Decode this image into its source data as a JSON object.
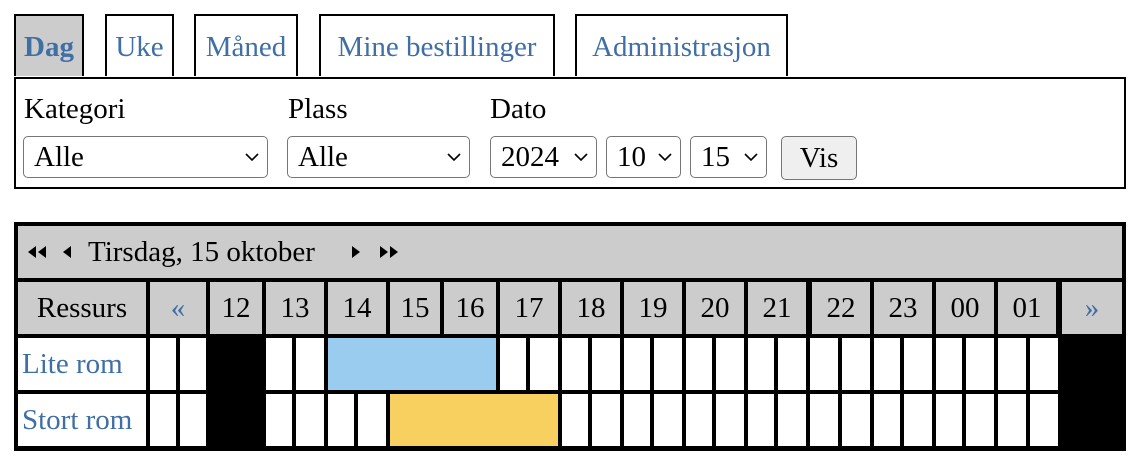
{
  "tabs": [
    {
      "label": "Dag",
      "active": true
    },
    {
      "label": "Uke"
    },
    {
      "label": "Måned"
    },
    {
      "label": "Mine bestillinger"
    },
    {
      "label": "Administrasjon"
    }
  ],
  "filters": {
    "kategori_label": "Kategori",
    "kategori_value": "Alle",
    "plass_label": "Plass",
    "plass_value": "Alle",
    "dato_label": "Dato",
    "year": "2024",
    "month": "10",
    "day": "15",
    "show_button": "Vis"
  },
  "calendar": {
    "date_title": "Tirsdag, 15 oktober",
    "resource_header": "Ressurs",
    "prev_label": "«",
    "next_label": "»",
    "hours": [
      "12",
      "13",
      "14",
      "15",
      "16",
      "17",
      "18",
      "19",
      "20",
      "21",
      "22",
      "23",
      "00",
      "01"
    ],
    "resources": [
      {
        "name": "Lite rom"
      },
      {
        "name": "Stort rom"
      }
    ],
    "colors": {
      "blocked": "#000000",
      "booking_lite": "#99ccee",
      "booking_stort": "#f8d060",
      "link": "#3f6fa5",
      "header_bg": "#cccccc"
    }
  }
}
